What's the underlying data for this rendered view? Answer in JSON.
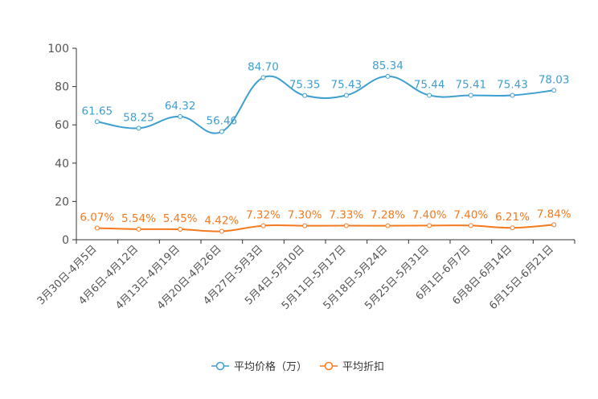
{
  "chart_data": {
    "type": "line",
    "title": "",
    "xlabel": "",
    "ylabel": "",
    "ylim": [
      0,
      100
    ],
    "yticks": [
      0,
      20,
      40,
      60,
      80,
      100
    ],
    "categories": [
      "3月30日-4月5日",
      "4月6日-4月12日",
      "4月13日-4月19日",
      "4月20日-4月26日",
      "4月27日-5月3日",
      "5月4日-5月10日",
      "5月11日-5月17日",
      "5月18日-5月24日",
      "5月25日-5月31日",
      "6月1日-6月7日",
      "6月8日-6月14日",
      "6月15日-6月21日"
    ],
    "series": [
      {
        "name": "平均价格（万）",
        "color": "#3e9fd0",
        "values": [
          61.65,
          58.25,
          64.32,
          56.46,
          84.7,
          75.35,
          75.43,
          85.34,
          75.44,
          75.41,
          75.43,
          78.03
        ],
        "labels": [
          "61.65",
          "58.25",
          "64.32",
          "56.46",
          "84.70",
          "75.35",
          "75.43",
          "85.34",
          "75.44",
          "75.41",
          "75.43",
          "78.03"
        ]
      },
      {
        "name": "平均折扣",
        "color": "#f5791f",
        "values": [
          6.07,
          5.54,
          5.45,
          4.42,
          7.32,
          7.3,
          7.33,
          7.28,
          7.4,
          7.4,
          6.21,
          7.84
        ],
        "labels": [
          "6.07%",
          "5.54%",
          "5.45%",
          "4.42%",
          "7.32%",
          "7.30%",
          "7.33%",
          "7.28%",
          "7.40%",
          "7.40%",
          "6.21%",
          "7.84%"
        ]
      }
    ],
    "legend_position": "bottom-center"
  }
}
